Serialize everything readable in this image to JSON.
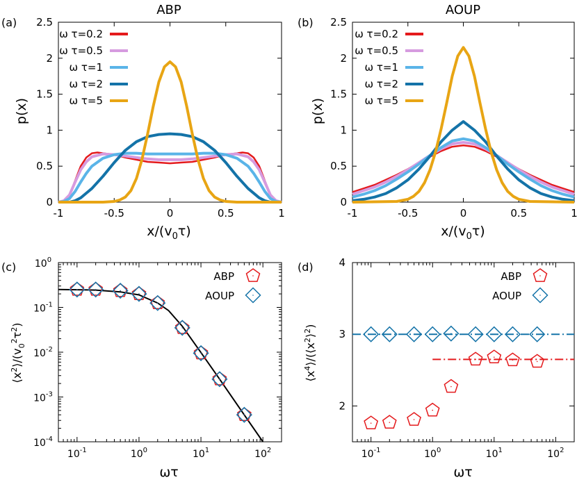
{
  "panels": {
    "a": {
      "tag": "(a)",
      "title": "ABP",
      "ylabel": "p(x)",
      "xlabel": "x/(v",
      "xlabel_sub": "0",
      "xlabel_tail": "τ)",
      "yticks": [
        "0",
        "0.5",
        "1",
        "1.5",
        "2",
        "2.5"
      ],
      "xticks": [
        "-1",
        "-0.5",
        "0",
        "0.5",
        "1"
      ]
    },
    "b": {
      "tag": "(b)",
      "title": "AOUP",
      "ylabel": "p(x)",
      "xlabel": "x/(v",
      "xlabel_sub": "0",
      "xlabel_tail": "τ)",
      "yticks": [
        "0",
        "0.5",
        "1",
        "1.5",
        "2",
        "2.5"
      ],
      "xticks": [
        "-1",
        "-0.5",
        "0",
        "0.5",
        "1"
      ]
    },
    "c": {
      "tag": "(c)",
      "xlabel": "ωτ",
      "ylabel_parts": [
        "⟨x",
        "2",
        "⟩/(v",
        "0",
        "2",
        "τ",
        "2",
        ")"
      ],
      "yticks_exp": [
        "-4",
        "-3",
        "-2",
        "-1",
        "0"
      ],
      "xticks_exp": [
        "-1",
        "0",
        "1",
        "2"
      ],
      "tick_base": "10"
    },
    "d": {
      "tag": "(d)",
      "xlabel": "ωτ",
      "ylabel_parts": [
        "⟨x",
        "4",
        "⟩/(⟨x",
        "2",
        "⟩",
        "2",
        ")"
      ],
      "yticks": [
        "2",
        "3",
        "4"
      ],
      "xticks_exp": [
        "-1",
        "0",
        "1",
        "2"
      ],
      "tick_base": "10"
    }
  },
  "legend_dist": [
    "ω τ=0.2",
    "ω τ=0.5",
    "ω τ=1",
    "ω τ=2",
    "ω τ=5"
  ],
  "legend_markers": [
    "ABP",
    "AOUP"
  ],
  "colors": {
    "s02": "#e41a1c",
    "s05": "#d69bdf",
    "s1": "#5ab4e8",
    "s2": "#1473a8",
    "s5": "#e8a514",
    "abp": "#e41a1c",
    "aoup": "#1473a8",
    "theory": "#000000"
  },
  "chart_data": [
    {
      "type": "line",
      "title": "ABP",
      "xlabel": "x/(v0τ)",
      "ylabel": "p(x)",
      "xlim": [
        -1,
        1
      ],
      "ylim": [
        0,
        2.5
      ],
      "series": [
        {
          "name": "ω τ=0.2",
          "x": [
            -1,
            -0.95,
            -0.9,
            -0.85,
            -0.8,
            -0.75,
            -0.7,
            -0.65,
            -0.6,
            -0.5,
            -0.4,
            -0.3,
            -0.2,
            -0.1,
            0,
            0.1,
            0.2,
            0.3,
            0.4,
            0.5,
            0.6,
            0.65,
            0.7,
            0.75,
            0.8,
            0.85,
            0.9,
            0.95,
            1
          ],
          "y": [
            0,
            0.02,
            0.1,
            0.3,
            0.5,
            0.62,
            0.68,
            0.69,
            0.68,
            0.66,
            0.62,
            0.59,
            0.56,
            0.55,
            0.54,
            0.55,
            0.56,
            0.59,
            0.62,
            0.66,
            0.68,
            0.69,
            0.68,
            0.62,
            0.5,
            0.3,
            0.1,
            0.02,
            0
          ]
        },
        {
          "name": "ω τ=0.5",
          "x": [
            -1,
            -0.95,
            -0.9,
            -0.85,
            -0.8,
            -0.75,
            -0.7,
            -0.6,
            -0.5,
            -0.4,
            -0.3,
            -0.2,
            -0.1,
            0,
            0.1,
            0.2,
            0.3,
            0.4,
            0.5,
            0.6,
            0.7,
            0.75,
            0.8,
            0.85,
            0.9,
            0.95,
            1
          ],
          "y": [
            0,
            0.02,
            0.1,
            0.28,
            0.45,
            0.56,
            0.63,
            0.67,
            0.66,
            0.64,
            0.62,
            0.6,
            0.59,
            0.59,
            0.59,
            0.6,
            0.62,
            0.64,
            0.66,
            0.67,
            0.63,
            0.56,
            0.45,
            0.28,
            0.1,
            0.02,
            0
          ]
        },
        {
          "name": "ω τ=1",
          "x": [
            -1,
            -0.95,
            -0.9,
            -0.85,
            -0.8,
            -0.75,
            -0.7,
            -0.6,
            -0.5,
            -0.4,
            -0.3,
            -0.2,
            -0.1,
            0,
            0.1,
            0.2,
            0.3,
            0.4,
            0.5,
            0.6,
            0.7,
            0.75,
            0.8,
            0.85,
            0.9,
            0.95,
            1
          ],
          "y": [
            0,
            0.01,
            0.05,
            0.15,
            0.28,
            0.4,
            0.5,
            0.61,
            0.66,
            0.68,
            0.68,
            0.67,
            0.67,
            0.67,
            0.67,
            0.67,
            0.68,
            0.68,
            0.66,
            0.61,
            0.5,
            0.4,
            0.28,
            0.15,
            0.05,
            0.01,
            0
          ]
        },
        {
          "name": "ω τ=2",
          "x": [
            -1,
            -0.9,
            -0.85,
            -0.8,
            -0.7,
            -0.6,
            -0.5,
            -0.4,
            -0.3,
            -0.2,
            -0.1,
            0,
            0.1,
            0.2,
            0.3,
            0.4,
            0.5,
            0.6,
            0.7,
            0.8,
            0.85,
            0.9,
            1
          ],
          "y": [
            0,
            0,
            0.02,
            0.06,
            0.19,
            0.36,
            0.55,
            0.72,
            0.84,
            0.91,
            0.94,
            0.95,
            0.94,
            0.91,
            0.84,
            0.72,
            0.55,
            0.36,
            0.19,
            0.06,
            0.02,
            0,
            0
          ]
        },
        {
          "name": "ω τ=5",
          "x": [
            -1,
            -0.6,
            -0.5,
            -0.45,
            -0.4,
            -0.35,
            -0.3,
            -0.25,
            -0.2,
            -0.15,
            -0.1,
            -0.05,
            0,
            0.05,
            0.1,
            0.15,
            0.2,
            0.25,
            0.3,
            0.35,
            0.4,
            0.45,
            0.5,
            0.6,
            1
          ],
          "y": [
            0,
            0,
            0.01,
            0.03,
            0.07,
            0.16,
            0.33,
            0.6,
            0.95,
            1.33,
            1.67,
            1.88,
            1.95,
            1.88,
            1.67,
            1.33,
            0.95,
            0.6,
            0.33,
            0.16,
            0.07,
            0.03,
            0.01,
            0,
            0
          ]
        }
      ]
    },
    {
      "type": "line",
      "title": "AOUP",
      "xlabel": "x/(v0τ)",
      "ylabel": "p(x)",
      "xlim": [
        -1,
        1
      ],
      "ylim": [
        0,
        2.5
      ],
      "series": [
        {
          "name": "ω τ=0.2",
          "x": [
            -1,
            -0.9,
            -0.8,
            -0.7,
            -0.6,
            -0.5,
            -0.4,
            -0.3,
            -0.2,
            -0.1,
            0,
            0.1,
            0.2,
            0.3,
            0.4,
            0.5,
            0.6,
            0.7,
            0.8,
            0.9,
            1
          ],
          "y": [
            0.14,
            0.19,
            0.24,
            0.31,
            0.38,
            0.46,
            0.55,
            0.63,
            0.71,
            0.77,
            0.79,
            0.77,
            0.71,
            0.63,
            0.55,
            0.46,
            0.38,
            0.31,
            0.24,
            0.19,
            0.14
          ]
        },
        {
          "name": "ω τ=0.5",
          "x": [
            -1,
            -0.9,
            -0.8,
            -0.7,
            -0.6,
            -0.5,
            -0.4,
            -0.3,
            -0.2,
            -0.1,
            0,
            0.1,
            0.2,
            0.3,
            0.4,
            0.5,
            0.6,
            0.7,
            0.8,
            0.9,
            1
          ],
          "y": [
            0.11,
            0.16,
            0.21,
            0.28,
            0.36,
            0.45,
            0.55,
            0.65,
            0.74,
            0.81,
            0.83,
            0.81,
            0.74,
            0.65,
            0.55,
            0.45,
            0.36,
            0.28,
            0.21,
            0.16,
            0.11
          ]
        },
        {
          "name": "ω τ=1",
          "x": [
            -1,
            -0.9,
            -0.8,
            -0.7,
            -0.6,
            -0.5,
            -0.4,
            -0.3,
            -0.2,
            -0.1,
            0,
            0.1,
            0.2,
            0.3,
            0.4,
            0.5,
            0.6,
            0.7,
            0.8,
            0.9,
            1
          ],
          "y": [
            0.07,
            0.11,
            0.16,
            0.23,
            0.32,
            0.42,
            0.53,
            0.65,
            0.76,
            0.85,
            0.88,
            0.85,
            0.76,
            0.65,
            0.53,
            0.42,
            0.32,
            0.23,
            0.16,
            0.11,
            0.07
          ]
        },
        {
          "name": "ω τ=2",
          "x": [
            -1,
            -0.9,
            -0.8,
            -0.7,
            -0.6,
            -0.5,
            -0.4,
            -0.3,
            -0.2,
            -0.1,
            0,
            0.1,
            0.2,
            0.3,
            0.4,
            0.5,
            0.6,
            0.7,
            0.8,
            0.9,
            1
          ],
          "y": [
            0.02,
            0.04,
            0.07,
            0.12,
            0.2,
            0.31,
            0.46,
            0.64,
            0.84,
            1.0,
            1.12,
            1.0,
            0.84,
            0.64,
            0.46,
            0.31,
            0.2,
            0.12,
            0.07,
            0.04,
            0.02
          ]
        },
        {
          "name": "ω τ=5",
          "x": [
            -1,
            -0.6,
            -0.5,
            -0.45,
            -0.4,
            -0.35,
            -0.3,
            -0.25,
            -0.2,
            -0.15,
            -0.1,
            -0.05,
            0,
            0.05,
            0.1,
            0.15,
            0.2,
            0.25,
            0.3,
            0.35,
            0.4,
            0.45,
            0.5,
            0.6,
            1
          ],
          "y": [
            0,
            0.01,
            0.04,
            0.08,
            0.15,
            0.27,
            0.45,
            0.7,
            1.02,
            1.38,
            1.75,
            2.03,
            2.15,
            2.03,
            1.75,
            1.38,
            1.02,
            0.7,
            0.45,
            0.27,
            0.15,
            0.08,
            0.04,
            0.01,
            0
          ]
        }
      ]
    },
    {
      "type": "scatter",
      "xlabel": "ωτ",
      "ylabel": "⟨x²⟩/(v0²τ²)",
      "xscale": "log",
      "yscale": "log",
      "xlim": [
        0.05,
        200
      ],
      "ylim": [
        0.0001,
        1
      ],
      "series": [
        {
          "name": "ABP",
          "marker": "pentagon",
          "x": [
            0.1,
            0.2,
            0.5,
            1,
            2,
            5,
            10,
            20,
            50
          ],
          "y": [
            0.25,
            0.25,
            0.235,
            0.2,
            0.125,
            0.035,
            0.0095,
            0.0025,
            0.0004
          ]
        },
        {
          "name": "AOUP",
          "marker": "diamond",
          "x": [
            0.1,
            0.2,
            0.5,
            1,
            2,
            5,
            10,
            20,
            50
          ],
          "y": [
            0.25,
            0.25,
            0.235,
            0.2,
            0.125,
            0.035,
            0.0095,
            0.0025,
            0.0004
          ]
        },
        {
          "type": "line",
          "x": [
            0.05,
            0.1,
            0.2,
            0.5,
            1,
            2,
            3,
            5,
            10,
            20,
            50,
            100
          ],
          "y": [
            0.25,
            0.248,
            0.243,
            0.222,
            0.19,
            0.125,
            0.085,
            0.038,
            0.0098,
            0.0025,
            0.0004,
            0.0001
          ]
        }
      ]
    },
    {
      "type": "scatter",
      "xlabel": "ωτ",
      "ylabel": "⟨x⁴⟩/(⟨x²⟩²)",
      "xscale": "log",
      "xlim": [
        0.05,
        200
      ],
      "ylim": [
        1.5,
        4
      ],
      "series": [
        {
          "name": "ABP",
          "marker": "pentagon",
          "x": [
            0.1,
            0.2,
            0.5,
            1,
            2,
            5,
            10,
            20,
            50
          ],
          "y": [
            1.76,
            1.77,
            1.81,
            1.94,
            2.27,
            2.65,
            2.68,
            2.64,
            2.62
          ]
        },
        {
          "name": "AOUP",
          "marker": "diamond",
          "x": [
            0.1,
            0.2,
            0.5,
            1,
            2,
            5,
            10,
            20,
            50
          ],
          "y": [
            3.0,
            3.0,
            3.0,
            3.0,
            3.01,
            3.0,
            3.0,
            3.0,
            3.0
          ]
        },
        {
          "type": "dash-dot",
          "x": [
            0.05,
            200
          ],
          "y": [
            3.0,
            3.0
          ]
        },
        {
          "type": "dash-dot",
          "x": [
            1,
            200
          ],
          "y": [
            2.65,
            2.65
          ]
        }
      ]
    }
  ]
}
